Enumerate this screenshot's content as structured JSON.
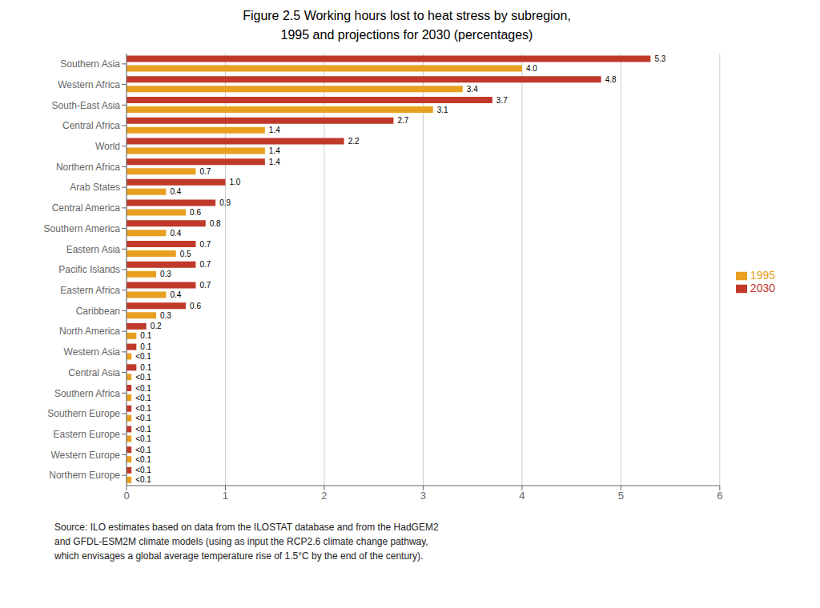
{
  "chart_data": {
    "type": "bar",
    "orientation": "horizontal",
    "title": "Figure 2.5  Working hours lost to heat stress by subregion,",
    "subtitle": "1995 and projections for 2030 (percentages)",
    "categories": [
      "Southern Asia",
      "Western Africa",
      "South-East Asia",
      "Central Africa",
      "World",
      "Northern Africa",
      "Arab States",
      "Central America",
      "Southern America",
      "Eastern Asia",
      "Pacific Islands",
      "Eastern Africa",
      "Caribbean",
      "North America",
      "Western Asia",
      "Central Asia",
      "Southern Africa",
      "Southern Europe",
      "Eastern Europe",
      "Western Europe",
      "Northern Europe"
    ],
    "series": [
      {
        "name": "2030",
        "color": "#C0392B",
        "values": [
          5.3,
          4.8,
          3.7,
          2.7,
          2.2,
          1.4,
          1.0,
          0.9,
          0.8,
          0.7,
          0.7,
          0.7,
          0.6,
          0.2,
          0.1,
          0.1,
          0.05,
          0.05,
          0.05,
          0.05,
          0.05
        ],
        "value_labels": [
          "5.3",
          "4.8",
          "3.7",
          "2.7",
          "2.2",
          "1.4",
          "1.0",
          "0.9",
          "0.8",
          "0.7",
          "0.7",
          "0.7",
          "0.6",
          "0.2",
          "0.1",
          "0.1",
          "<0.1",
          "<0.1",
          "<0.1",
          "<0.1",
          "<0.1"
        ]
      },
      {
        "name": "1995",
        "color": "#E8A020",
        "values": [
          4.0,
          3.4,
          3.1,
          1.4,
          1.4,
          0.7,
          0.4,
          0.6,
          0.4,
          0.5,
          0.3,
          0.4,
          0.3,
          0.1,
          0.05,
          0.05,
          0.05,
          0.05,
          0.05,
          0.05,
          0.05
        ],
        "value_labels": [
          "4.0",
          "3.4",
          "3.1",
          "1.4",
          "1.4",
          "0.7",
          "0.4",
          "0.6",
          "0.4",
          "0.5",
          "0.3",
          "0.4",
          "0.3",
          "0.1",
          "<0.1",
          "<0.1",
          "<0.1",
          "<0.1",
          "<0.1",
          "<0.1",
          "<0.1"
        ]
      }
    ],
    "xlim": [
      0,
      6
    ],
    "xticks": [
      0,
      1,
      2,
      3,
      4,
      5,
      6
    ],
    "grid": true,
    "legend": "right",
    "data_labels": true,
    "source": "Source: ILO estimates based on data from the ILOSTAT database and from the HadGEM2\nand GFDL-ESM2M climate models (using as input the RCP2.6 climate change pathway,\nwhich envisages a global average temperature rise of 1.5°C by the end of the century)."
  }
}
